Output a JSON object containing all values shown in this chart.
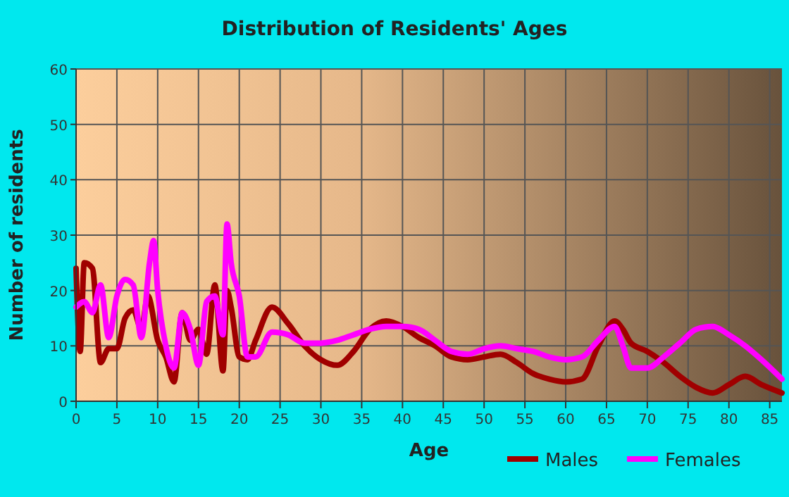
{
  "chart_data": {
    "type": "line",
    "title": "Distribution of Residents' Ages",
    "xlabel": "Age",
    "ylabel": "Number of residents",
    "xlim": [
      0,
      86.5
    ],
    "xticks": [
      0,
      5,
      10,
      15,
      20,
      25,
      30,
      35,
      40,
      45,
      50,
      55,
      60,
      65,
      70,
      75,
      80,
      85
    ],
    "ylim": [
      0,
      60
    ],
    "yticks": [
      0,
      10,
      20,
      30,
      40,
      50,
      60
    ],
    "grid": true,
    "legend": "bottom",
    "marker": "none",
    "line_style": "solid",
    "series": [
      {
        "name": "Males",
        "color": "#a00000",
        "x": [
          0,
          0.5,
          1,
          2,
          3,
          4,
          5,
          6,
          7,
          8,
          8.8,
          10,
          11,
          12,
          13,
          14,
          15,
          16,
          17,
          18,
          18.5,
          19,
          20,
          21,
          22,
          24,
          26,
          28,
          30,
          32,
          34,
          36,
          38,
          40,
          42,
          44,
          46,
          48,
          50,
          52,
          54,
          56,
          58,
          60,
          62,
          64,
          66,
          67,
          68,
          70,
          72,
          74,
          76,
          78,
          80,
          82,
          84,
          86.5
        ],
        "values": [
          24,
          9,
          25,
          24,
          7,
          9.5,
          9.5,
          15,
          16.5,
          13,
          19,
          11,
          8,
          3.5,
          16,
          11,
          13,
          8.5,
          21,
          5.5,
          20,
          17,
          8,
          7.5,
          11,
          17,
          14,
          10,
          7.5,
          6.5,
          9,
          13,
          14.5,
          13.5,
          11.5,
          10,
          8,
          7.5,
          8,
          8.5,
          7,
          5,
          4,
          3.5,
          4,
          10,
          14.5,
          13,
          10.5,
          9,
          7,
          4.5,
          2.5,
          1.5,
          3,
          4.5,
          3,
          1.5
        ]
      },
      {
        "name": "Females",
        "color": "#ff00ff",
        "x": [
          0,
          1,
          2,
          3,
          4,
          5,
          6,
          7,
          8,
          9,
          9.5,
          10,
          11,
          12,
          13,
          14,
          15,
          16,
          17,
          18,
          18.5,
          19,
          20,
          21,
          22,
          24,
          26,
          28,
          30,
          32,
          34,
          36,
          38,
          40,
          42,
          44,
          46,
          48,
          50,
          52,
          54,
          56,
          58,
          60,
          62,
          64,
          66,
          67,
          68,
          70,
          72,
          74,
          76,
          78,
          80,
          82,
          84,
          86.5
        ],
        "values": [
          17,
          18,
          16,
          21,
          11.5,
          19,
          22,
          21,
          11.5,
          25,
          29,
          20,
          10,
          6,
          16,
          13,
          6.5,
          18,
          19,
          12,
          32,
          25,
          19,
          8,
          8,
          12.5,
          12,
          10.5,
          10.5,
          11,
          12,
          13,
          13.5,
          13.5,
          13,
          11,
          9,
          8.5,
          9.5,
          10,
          9.5,
          9,
          8,
          7.5,
          8,
          11,
          13.5,
          10,
          6,
          6,
          8,
          10.5,
          13,
          13.5,
          12,
          10,
          7.5,
          4
        ]
      }
    ]
  }
}
